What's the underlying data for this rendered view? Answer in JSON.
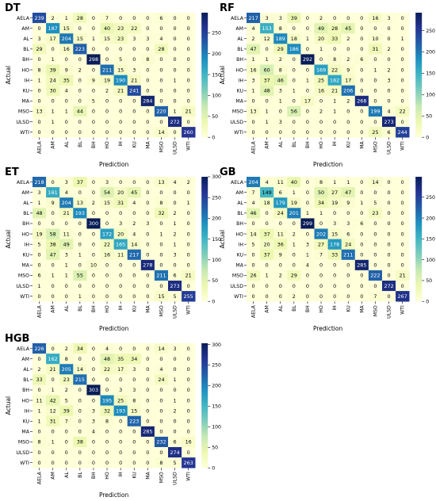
{
  "chart_data": [
    {
      "type": "heatmap",
      "title": "DT",
      "xlabel": "Prediction",
      "ylabel": "Actual",
      "categories": [
        "AELA",
        "AM",
        "AL",
        "BL",
        "BH",
        "HO",
        "IH",
        "KU",
        "MA",
        "MSO",
        "ULSD",
        "WTI"
      ],
      "colorbar_ticks": [
        0,
        50,
        100,
        150,
        200,
        250
      ],
      "vmax": 298,
      "matrix": [
        [
          239,
          2,
          1,
          28,
          0,
          7,
          0,
          0,
          0,
          6,
          0,
          0
        ],
        [
          0,
          187,
          15,
          0,
          0,
          40,
          23,
          22,
          0,
          0,
          0,
          0
        ],
        [
          3,
          17,
          204,
          15,
          1,
          15,
          23,
          3,
          3,
          4,
          0,
          0
        ],
        [
          29,
          0,
          16,
          223,
          0,
          0,
          0,
          0,
          0,
          28,
          0,
          0
        ],
        [
          0,
          1,
          0,
          0,
          298,
          0,
          5,
          0,
          8,
          0,
          0,
          0
        ],
        [
          8,
          39,
          9,
          2,
          0,
          211,
          15,
          3,
          0,
          0,
          0,
          0
        ],
        [
          1,
          24,
          35,
          0,
          9,
          19,
          190,
          21,
          0,
          0,
          1,
          0
        ],
        [
          0,
          30,
          4,
          0,
          0,
          2,
          21,
          241,
          0,
          0,
          0,
          0
        ],
        [
          0,
          0,
          0,
          0,
          5,
          0,
          0,
          0,
          284,
          0,
          0,
          0
        ],
        [
          13,
          1,
          1,
          44,
          0,
          0,
          0,
          0,
          0,
          220,
          1,
          21
        ],
        [
          0,
          1,
          0,
          0,
          0,
          0,
          0,
          0,
          0,
          0,
          272,
          0
        ],
        [
          0,
          0,
          0,
          0,
          0,
          0,
          0,
          0,
          0,
          14,
          0,
          260
        ]
      ]
    },
    {
      "type": "heatmap",
      "title": "RF",
      "xlabel": "Prediction",
      "ylabel": "Actual",
      "categories": [
        "AELA",
        "AM",
        "AL",
        "BL",
        "BH",
        "HO",
        "IH",
        "KU",
        "MA",
        "MSO",
        "ULSD",
        "WTI"
      ],
      "colorbar_ticks": [
        0,
        50,
        100,
        150,
        200,
        250
      ],
      "vmax": 292,
      "matrix": [
        [
          217,
          3,
          3,
          39,
          0,
          2,
          0,
          0,
          0,
          16,
          3,
          0
        ],
        [
          4,
          153,
          8,
          0,
          0,
          49,
          28,
          45,
          0,
          0,
          0,
          0
        ],
        [
          2,
          12,
          189,
          18,
          1,
          20,
          33,
          2,
          0,
          10,
          0,
          1
        ],
        [
          47,
          0,
          29,
          186,
          0,
          1,
          0,
          0,
          0,
          31,
          2,
          0
        ],
        [
          1,
          1,
          2,
          0,
          292,
          0,
          8,
          2,
          6,
          0,
          0,
          0
        ],
        [
          16,
          60,
          8,
          0,
          0,
          169,
          22,
          9,
          0,
          1,
          2,
          0
        ],
        [
          3,
          37,
          46,
          0,
          1,
          25,
          162,
          17,
          0,
          0,
          3,
          0
        ],
        [
          1,
          48,
          3,
          1,
          0,
          16,
          21,
          206,
          0,
          0,
          0,
          0
        ],
        [
          0,
          0,
          1,
          0,
          17,
          0,
          1,
          2,
          268,
          0,
          0,
          0
        ],
        [
          13,
          1,
          0,
          56,
          0,
          2,
          1,
          0,
          0,
          199,
          4,
          22
        ],
        [
          0,
          1,
          3,
          0,
          0,
          0,
          0,
          0,
          0,
          0,
          273,
          0
        ],
        [
          0,
          0,
          0,
          0,
          0,
          0,
          0,
          0,
          0,
          25,
          6,
          244
        ]
      ]
    },
    {
      "type": "heatmap",
      "title": "ET",
      "xlabel": "Prediction",
      "ylabel": "Actual",
      "categories": [
        "AELA",
        "AM",
        "AL",
        "BL",
        "BH",
        "HO",
        "IH",
        "KU",
        "MA",
        "MSO",
        "ULSD",
        "WTI"
      ],
      "colorbar_ticks": [
        0,
        50,
        100,
        150,
        200,
        250,
        300
      ],
      "vmax": 300,
      "matrix": [
        [
          218,
          0,
          3,
          37,
          0,
          3,
          0,
          0,
          0,
          13,
          4,
          2
        ],
        [
          3,
          161,
          4,
          0,
          0,
          54,
          20,
          45,
          0,
          0,
          0,
          0
        ],
        [
          1,
          9,
          204,
          13,
          2,
          15,
          31,
          4,
          0,
          8,
          0,
          1
        ],
        [
          48,
          0,
          21,
          193,
          0,
          0,
          0,
          0,
          0,
          32,
          2,
          0
        ],
        [
          0,
          0,
          0,
          0,
          300,
          0,
          3,
          2,
          3,
          0,
          1,
          0
        ],
        [
          19,
          58,
          11,
          0,
          0,
          172,
          20,
          4,
          0,
          1,
          2,
          0
        ],
        [
          5,
          38,
          49,
          0,
          0,
          22,
          165,
          14,
          0,
          0,
          1,
          0
        ],
        [
          0,
          47,
          3,
          1,
          0,
          16,
          11,
          217,
          0,
          0,
          3,
          0
        ],
        [
          0,
          0,
          1,
          0,
          10,
          0,
          0,
          0,
          278,
          0,
          0,
          0
        ],
        [
          6,
          1,
          1,
          55,
          0,
          0,
          0,
          0,
          0,
          211,
          6,
          21
        ],
        [
          1,
          0,
          0,
          0,
          0,
          0,
          0,
          0,
          0,
          0,
          273,
          0
        ],
        [
          0,
          0,
          0,
          1,
          0,
          0,
          0,
          0,
          0,
          15,
          5,
          255
        ]
      ]
    },
    {
      "type": "heatmap",
      "title": "GB",
      "xlabel": "Prediction",
      "ylabel": "Actual",
      "categories": [
        "AELA",
        "AM",
        "AL",
        "BL",
        "BH",
        "HO",
        "IH",
        "KU",
        "MA",
        "MSO",
        "ULSD",
        "WTI"
      ],
      "colorbar_ticks": [
        0,
        50,
        100,
        150,
        200,
        250
      ],
      "vmax": 299,
      "matrix": [
        [
          204,
          4,
          11,
          40,
          0,
          8,
          1,
          1,
          0,
          14,
          0,
          0
        ],
        [
          7,
          149,
          6,
          1,
          0,
          50,
          27,
          47,
          0,
          0,
          0,
          0
        ],
        [
          4,
          18,
          179,
          19,
          0,
          34,
          19,
          9,
          1,
          5,
          0,
          0
        ],
        [
          46,
          0,
          24,
          201,
          1,
          1,
          0,
          0,
          0,
          23,
          0,
          0
        ],
        [
          0,
          0,
          0,
          0,
          299,
          0,
          3,
          3,
          6,
          0,
          0,
          0
        ],
        [
          14,
          37,
          11,
          2,
          0,
          202,
          15,
          6,
          0,
          0,
          0,
          0
        ],
        [
          5,
          20,
          36,
          1,
          3,
          27,
          178,
          24,
          0,
          0,
          0,
          0
        ],
        [
          0,
          37,
          9,
          0,
          1,
          7,
          33,
          211,
          0,
          0,
          0,
          0
        ],
        [
          0,
          0,
          0,
          0,
          4,
          0,
          0,
          0,
          285,
          0,
          0,
          0
        ],
        [
          26,
          1,
          2,
          29,
          0,
          0,
          0,
          0,
          0,
          222,
          0,
          21
        ],
        [
          0,
          0,
          0,
          0,
          0,
          0,
          0,
          0,
          0,
          0,
          272,
          0
        ],
        [
          0,
          0,
          0,
          2,
          0,
          0,
          0,
          0,
          0,
          7,
          0,
          267
        ]
      ]
    },
    {
      "type": "heatmap",
      "title": "HGB",
      "xlabel": "Prediction",
      "ylabel": "Actual",
      "categories": [
        "AELA",
        "AM",
        "AL",
        "BL",
        "BH",
        "HO",
        "IH",
        "KU",
        "MA",
        "MSO",
        "ULSD",
        "WTI"
      ],
      "colorbar_ticks": [
        0,
        50,
        100,
        150,
        200,
        250,
        300
      ],
      "vmax": 303,
      "matrix": [
        [
          226,
          0,
          2,
          34,
          0,
          4,
          0,
          0,
          0,
          14,
          3,
          0
        ],
        [
          0,
          162,
          8,
          0,
          0,
          48,
          35,
          34,
          0,
          0,
          0,
          0
        ],
        [
          2,
          21,
          205,
          14,
          0,
          22,
          17,
          3,
          0,
          4,
          0,
          0
        ],
        [
          33,
          0,
          23,
          215,
          0,
          0,
          0,
          0,
          0,
          24,
          1,
          0
        ],
        [
          0,
          1,
          2,
          0,
          303,
          0,
          3,
          3,
          0,
          0,
          0,
          0
        ],
        [
          11,
          42,
          5,
          0,
          0,
          195,
          25,
          8,
          0,
          0,
          1,
          0
        ],
        [
          1,
          12,
          39,
          0,
          3,
          32,
          193,
          15,
          0,
          0,
          2,
          0
        ],
        [
          1,
          31,
          7,
          0,
          3,
          8,
          0,
          223,
          0,
          0,
          0,
          0
        ],
        [
          0,
          0,
          0,
          0,
          4,
          0,
          0,
          0,
          285,
          0,
          0,
          0
        ],
        [
          8,
          1,
          0,
          38,
          0,
          0,
          0,
          0,
          0,
          232,
          6,
          16
        ],
        [
          0,
          0,
          0,
          0,
          0,
          0,
          0,
          0,
          0,
          0,
          274,
          0
        ],
        [
          0,
          0,
          0,
          0,
          0,
          0,
          0,
          0,
          0,
          8,
          5,
          263
        ]
      ]
    }
  ]
}
